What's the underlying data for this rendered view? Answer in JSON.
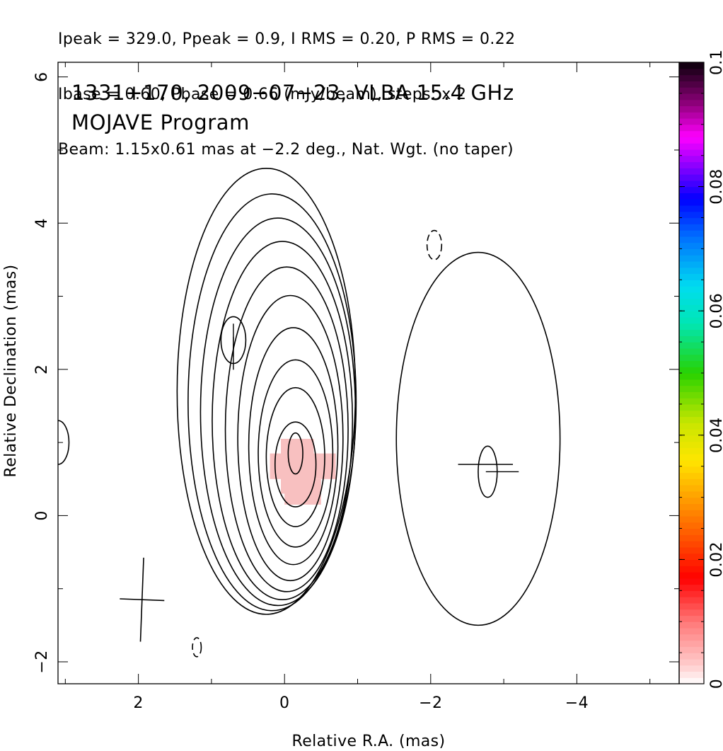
{
  "header": {
    "line1": "Ipeak = 329.0, Ppeak = 0.9, I RMS = 0.20, P RMS = 0.22",
    "line2": "Ibase = 0.60, Pbase = 0.66 (mJy/beam), steps: x 2",
    "line3": "Beam: 1.15x0.61 mas at −2.2 deg., Nat. Wgt. (no taper)"
  },
  "chart_data": {
    "type": "contour",
    "title_line1": "1331+170, 2009−07−23, VLBA 15.4 GHz",
    "title_line2": "MOJAVE Program",
    "xlabel": "Relative R.A. (mas)",
    "ylabel": "Relative Declination (mas)",
    "xlim": [
      3.1,
      -5.4
    ],
    "ylim": [
      -2.3,
      6.2
    ],
    "x_ticks": [
      {
        "value": 2,
        "label": "2"
      },
      {
        "value": 0,
        "label": "0"
      },
      {
        "value": -2,
        "label": "−2"
      },
      {
        "value": -4,
        "label": "−4"
      }
    ],
    "y_ticks": [
      {
        "value": -2,
        "label": "−2"
      },
      {
        "value": 0,
        "label": "0"
      },
      {
        "value": 2,
        "label": "2"
      },
      {
        "value": 4,
        "label": "4"
      },
      {
        "value": 6,
        "label": "6"
      }
    ],
    "colorbar": {
      "min": 0,
      "max": 0.1,
      "ticks": [
        {
          "value": 0,
          "label": "0"
        },
        {
          "value": 0.02,
          "label": "0.02"
        },
        {
          "value": 0.04,
          "label": "0.04"
        },
        {
          "value": 0.06,
          "label": "0.06"
        },
        {
          "value": 0.08,
          "label": "0.08"
        },
        {
          "value": 0.1,
          "label": "0.1"
        }
      ]
    },
    "core_contours": [
      {
        "cx": -0.15,
        "cy": 0.85,
        "rx": 0.1,
        "ry": 0.28
      },
      {
        "cx": -0.15,
        "cy": 0.7,
        "rx": 0.28,
        "ry": 0.58
      },
      {
        "cx": -0.15,
        "cy": 0.8,
        "rx": 0.4,
        "ry": 0.95
      },
      {
        "cx": -0.15,
        "cy": 0.85,
        "rx": 0.51,
        "ry": 1.28
      },
      {
        "cx": -0.12,
        "cy": 0.95,
        "rx": 0.61,
        "ry": 1.62
      },
      {
        "cx": -0.08,
        "cy": 1.06,
        "rx": 0.72,
        "ry": 1.95
      },
      {
        "cx": -0.03,
        "cy": 1.18,
        "rx": 0.84,
        "ry": 2.22
      },
      {
        "cx": 0.03,
        "cy": 1.3,
        "rx": 0.96,
        "ry": 2.45
      },
      {
        "cx": 0.09,
        "cy": 1.42,
        "rx": 1.06,
        "ry": 2.65
      },
      {
        "cx": 0.17,
        "cy": 1.55,
        "rx": 1.15,
        "ry": 2.85
      },
      {
        "cx": 0.25,
        "cy": 1.7,
        "rx": 1.22,
        "ry": 3.05
      }
    ],
    "knot_contour": {
      "cx": 0.7,
      "cy": 2.4,
      "rx": 0.17,
      "ry": 0.32
    },
    "halo_contour": {
      "cx": -2.65,
      "cy": 1.05,
      "rx": 1.12,
      "ry": 2.55
    },
    "halo_inner": {
      "cx": -2.78,
      "cy": 0.6,
      "rx": 0.13,
      "ry": 0.35
    },
    "negative_contours": [
      {
        "cx": -2.05,
        "cy": 3.7,
        "rx": 0.1,
        "ry": 0.2
      },
      {
        "cx": 1.2,
        "cy": -1.8,
        "rx": 0.06,
        "ry": 0.13
      }
    ],
    "edge_contour": {
      "cx": 3.1,
      "cy": 1.0,
      "rx": 0.15,
      "ry": 0.3
    },
    "beam": {
      "x": 1.95,
      "y": -1.15,
      "major": 1.15,
      "minor": 0.61,
      "pa": -2.2
    },
    "pol_pixels_color": "#f8c0c0",
    "pol_vectors": [
      {
        "x": 0.7,
        "y": 2.4,
        "angle": 90,
        "length": 0.45
      },
      {
        "x": 0.7,
        "y": 2.22,
        "angle": 90,
        "length": 0.45
      },
      {
        "x": -2.75,
        "y": 0.7,
        "angle": 0,
        "length": 0.75
      },
      {
        "x": -2.98,
        "y": 0.6,
        "angle": 0,
        "length": 0.45
      }
    ]
  }
}
